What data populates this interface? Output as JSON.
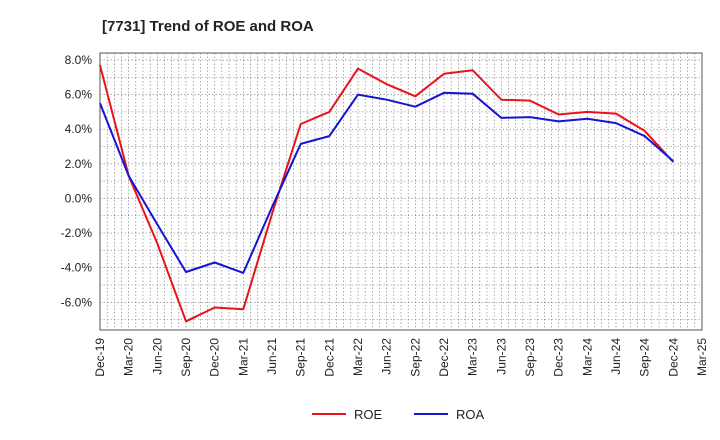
{
  "chart_data": {
    "type": "line",
    "title": "[7731]  Trend of ROE and ROA",
    "xlabel": "",
    "ylabel": "",
    "x": [
      "Dec-19",
      "Mar-20",
      "Jun-20",
      "Sep-20",
      "Dec-20",
      "Mar-21",
      "Jun-21",
      "Sep-21",
      "Dec-21",
      "Mar-22",
      "Jun-22",
      "Sep-22",
      "Dec-22",
      "Mar-23",
      "Jun-23",
      "Sep-23",
      "Dec-23",
      "Mar-24",
      "Jun-24",
      "Sep-24",
      "Dec-24",
      "Mar-25"
    ],
    "ylim": [
      -7.6,
      8.4
    ],
    "yticks": [
      8.0,
      6.0,
      4.0,
      2.0,
      0.0,
      -2.0,
      -4.0,
      -6.0
    ],
    "ytick_labels": [
      "8.0%",
      "6.0%",
      "4.0%",
      "2.0%",
      "0.0%",
      "-2.0%",
      "-4.0%",
      "-6.0%"
    ],
    "grid": true,
    "legend_position": "bottom",
    "series": [
      {
        "name": "ROE",
        "color": "#e8141c",
        "values": [
          7.7,
          1.3,
          -2.6,
          -7.1,
          -6.3,
          -6.4,
          -0.9,
          4.3,
          5.0,
          7.5,
          6.6,
          5.9,
          7.2,
          7.4,
          5.7,
          5.65,
          4.85,
          5.0,
          4.9,
          3.9,
          2.1,
          null
        ]
      },
      {
        "name": "ROA",
        "color": "#1414d2",
        "values": [
          5.5,
          1.3,
          -1.5,
          -4.25,
          -3.7,
          -4.3,
          -0.5,
          3.15,
          3.6,
          6.0,
          5.7,
          5.3,
          6.1,
          6.05,
          4.65,
          4.7,
          4.45,
          4.6,
          4.35,
          3.6,
          2.15,
          null
        ]
      }
    ]
  }
}
